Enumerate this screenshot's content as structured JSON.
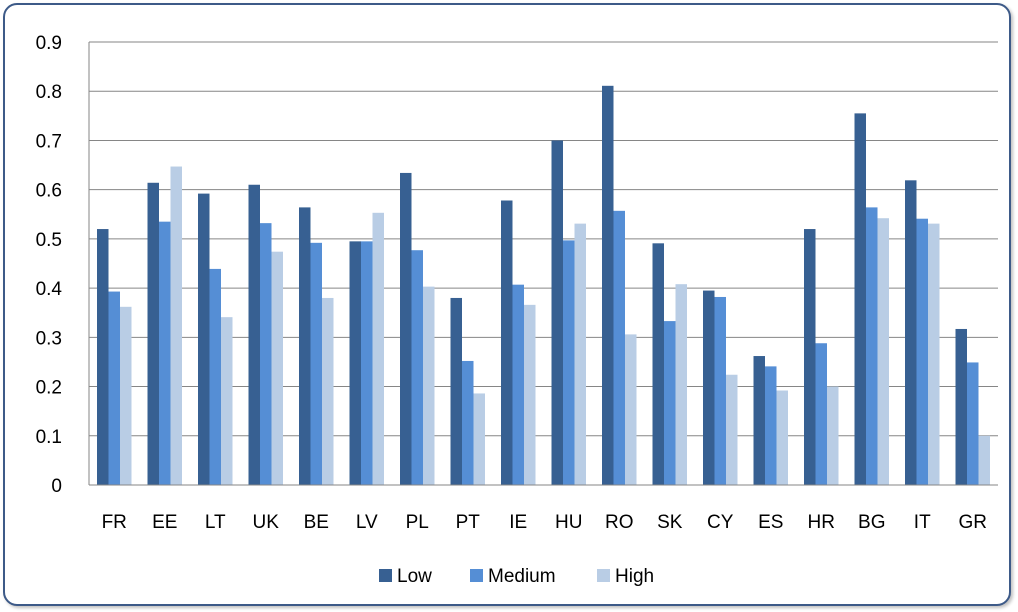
{
  "chart_data": {
    "type": "bar",
    "categories": [
      "FR",
      "EE",
      "LT",
      "UK",
      "BE",
      "LV",
      "PL",
      "PT",
      "IE",
      "HU",
      "RO",
      "SK",
      "CY",
      "ES",
      "HR",
      "BG",
      "IT",
      "GR"
    ],
    "series": [
      {
        "name": "Low",
        "color": "#376092",
        "values": [
          0.52,
          0.614,
          0.592,
          0.61,
          0.564,
          0.495,
          0.634,
          0.38,
          0.578,
          0.7,
          0.811,
          0.491,
          0.395,
          0.262,
          0.52,
          0.755,
          0.619,
          0.317
        ]
      },
      {
        "name": "Medium",
        "color": "#558ed5",
        "values": [
          0.393,
          0.535,
          0.439,
          0.532,
          0.492,
          0.495,
          0.477,
          0.252,
          0.407,
          0.497,
          0.557,
          0.333,
          0.382,
          0.241,
          0.288,
          0.564,
          0.541,
          0.249
        ]
      },
      {
        "name": "High",
        "color": "#b9cde5",
        "values": [
          0.362,
          0.647,
          0.341,
          0.474,
          0.38,
          0.553,
          0.403,
          0.186,
          0.366,
          0.531,
          0.306,
          0.408,
          0.224,
          0.192,
          0.2,
          0.542,
          0.531,
          0.1
        ]
      }
    ],
    "title": "",
    "xlabel": "",
    "ylabel": "",
    "ylim": [
      0,
      0.9
    ],
    "yticks": [
      "0",
      "0.1",
      "0.2",
      "0.3",
      "0.4",
      "0.5",
      "0.6",
      "0.7",
      "0.8",
      "0.9"
    ],
    "grid": true,
    "legend_position": "bottom"
  }
}
